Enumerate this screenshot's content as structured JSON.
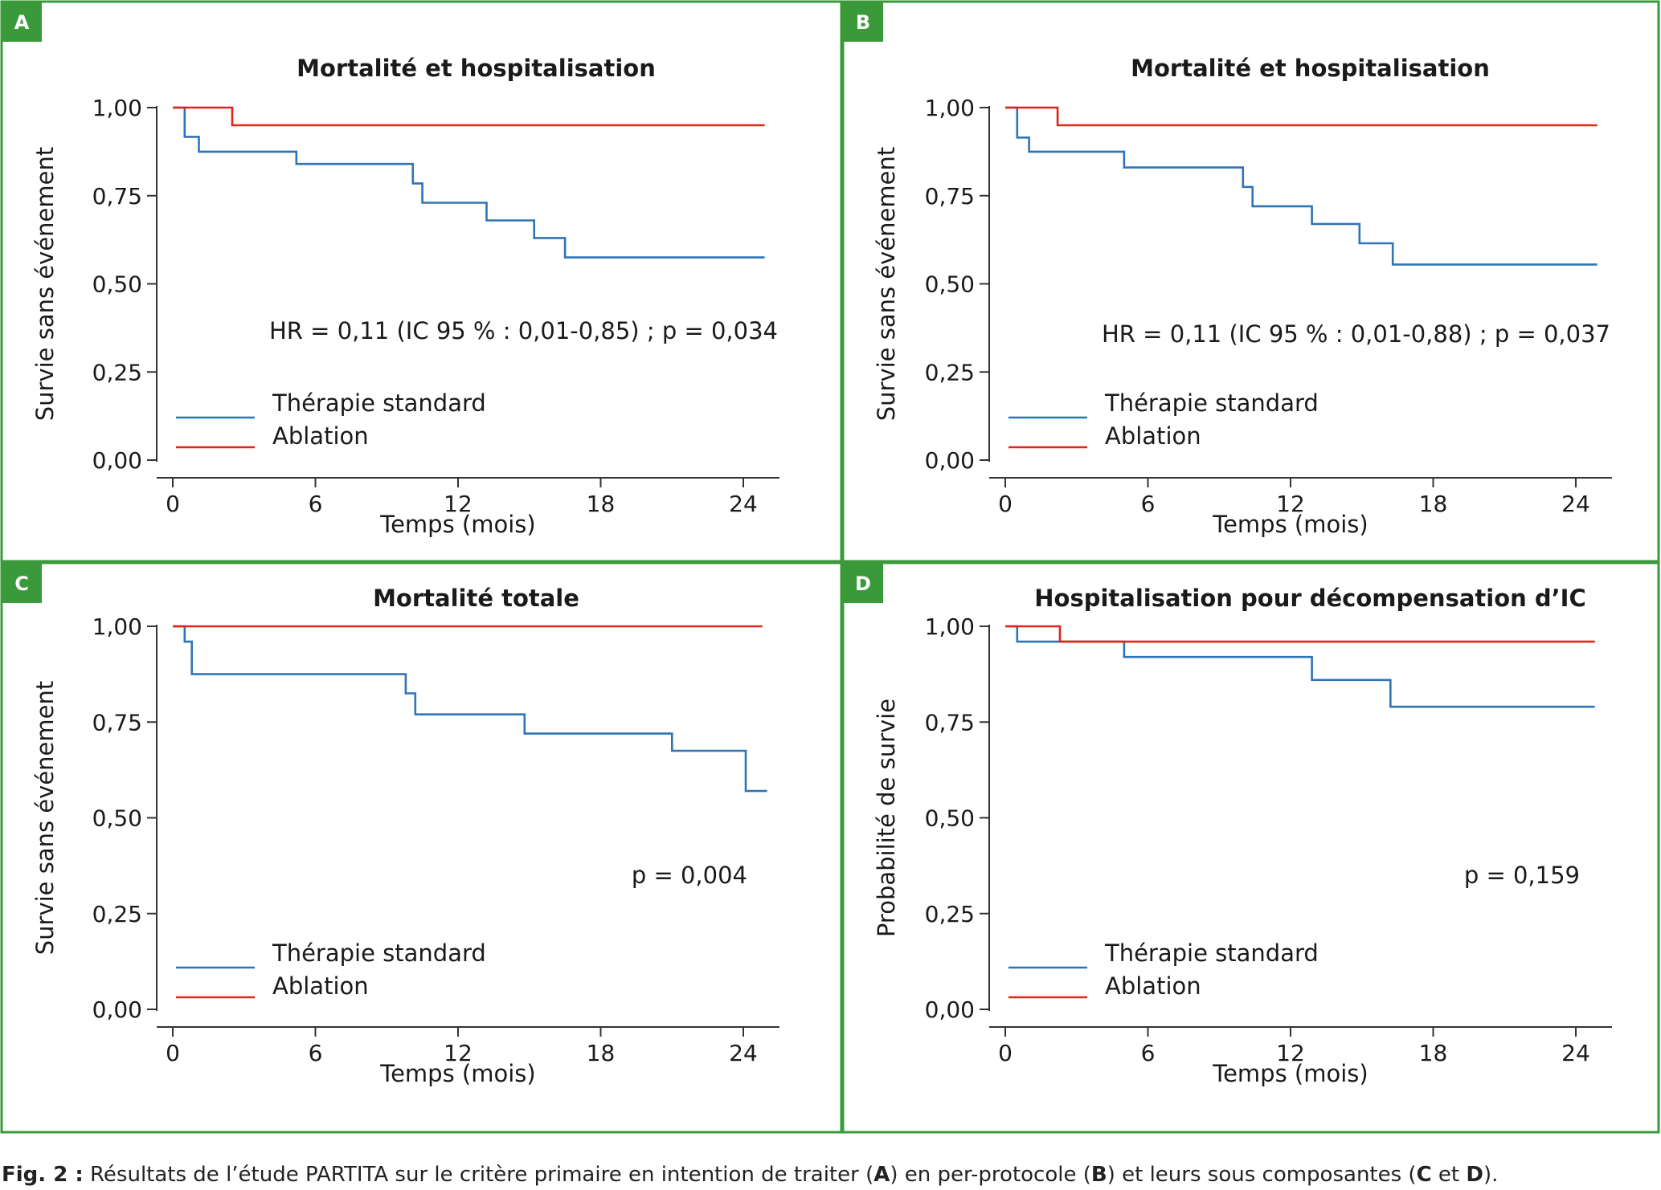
{
  "colors": {
    "frame": "#3a9a3a",
    "standard": "#2f74b5",
    "ablation": "#e2231a",
    "axis": "#333333"
  },
  "legend": {
    "standard": "Thérapie standard",
    "ablation": "Ablation"
  },
  "caption": {
    "label": "Fig. 2 :",
    "t1": " Résultats de l’étude PARTITA sur le critère primaire en intention de traiter (",
    "A": "A",
    "t2": ") en per-protocole (",
    "B": "B",
    "t3": ") et leurs sous composantes (",
    "C": "C",
    "t4": " et ",
    "D": "D",
    "t5": ")."
  },
  "chart_data": [
    {
      "panel": "A",
      "type": "line",
      "title": "Mortalité et hospitalisation",
      "xlabel": "Temps (mois)",
      "ylabel": "Survie sans événement",
      "xlim": [
        0,
        25.5
      ],
      "ylim": [
        0,
        1
      ],
      "xticks": [
        0,
        6,
        12,
        18,
        24
      ],
      "yticks": [
        "0,00",
        "0,25",
        "0,50",
        "0,75",
        "1,00"
      ],
      "annotation": "HR = 0,11 (IC 95 % : 0,01-0,85) ; p = 0,034",
      "series": [
        {
          "name": "Thérapie standard",
          "color": "standard",
          "step": true,
          "x": [
            0,
            0.5,
            0.5,
            1.1,
            1.1,
            5.2,
            5.2,
            10.1,
            10.1,
            10.5,
            10.5,
            13.2,
            13.2,
            15.2,
            15.2,
            16.5,
            16.5,
            24.9
          ],
          "y": [
            1.0,
            1.0,
            0.917,
            0.917,
            0.875,
            0.875,
            0.84,
            0.84,
            0.785,
            0.785,
            0.73,
            0.73,
            0.68,
            0.68,
            0.63,
            0.63,
            0.575,
            0.575
          ]
        },
        {
          "name": "Ablation",
          "color": "ablation",
          "step": true,
          "x": [
            0,
            2.5,
            2.5,
            24.9
          ],
          "y": [
            1.0,
            1.0,
            0.95,
            0.95
          ]
        }
      ]
    },
    {
      "panel": "B",
      "type": "line",
      "title": "Mortalité et hospitalisation",
      "xlabel": "Temps (mois)",
      "ylabel": "Survie sans événement",
      "xlim": [
        0,
        25.5
      ],
      "ylim": [
        0,
        1
      ],
      "xticks": [
        0,
        6,
        12,
        18,
        24
      ],
      "yticks": [
        "0,00",
        "0,25",
        "0,50",
        "0,75",
        "1,00"
      ],
      "annotation": "HR = 0,11 (IC 95 % : 0,01-0,88) ; p = 0,037",
      "series": [
        {
          "name": "Thérapie standard",
          "color": "standard",
          "step": true,
          "x": [
            0,
            0.5,
            0.5,
            1.0,
            1.0,
            5.0,
            5.0,
            10.0,
            10.0,
            10.4,
            10.4,
            12.9,
            12.9,
            14.9,
            14.9,
            16.3,
            16.3,
            24.9
          ],
          "y": [
            1.0,
            1.0,
            0.915,
            0.915,
            0.875,
            0.875,
            0.83,
            0.83,
            0.775,
            0.775,
            0.72,
            0.72,
            0.67,
            0.67,
            0.615,
            0.615,
            0.555,
            0.555
          ]
        },
        {
          "name": "Ablation",
          "color": "ablation",
          "step": true,
          "x": [
            0,
            2.2,
            2.2,
            24.9
          ],
          "y": [
            1.0,
            1.0,
            0.95,
            0.95
          ]
        }
      ]
    },
    {
      "panel": "C",
      "type": "line",
      "title": "Mortalité totale",
      "xlabel": "Temps (mois)",
      "ylabel": "Survie sans événement",
      "xlim": [
        0,
        25.5
      ],
      "ylim": [
        0,
        1
      ],
      "xticks": [
        0,
        6,
        12,
        18,
        24
      ],
      "yticks": [
        "0,00",
        "0,25",
        "0,50",
        "0,75",
        "1,00"
      ],
      "annotation": "p = 0,004",
      "series": [
        {
          "name": "Thérapie standard",
          "color": "standard",
          "step": true,
          "x": [
            0,
            0.5,
            0.5,
            0.8,
            0.8,
            9.8,
            9.8,
            10.2,
            10.2,
            14.8,
            14.8,
            21.0,
            21.0,
            24.1,
            24.1,
            25.0
          ],
          "y": [
            1.0,
            1.0,
            0.96,
            0.96,
            0.875,
            0.875,
            0.825,
            0.825,
            0.77,
            0.77,
            0.72,
            0.72,
            0.675,
            0.675,
            0.57,
            0.57
          ]
        },
        {
          "name": "Ablation",
          "color": "ablation",
          "step": false,
          "x": [
            0,
            24.8
          ],
          "y": [
            1.0,
            1.0
          ]
        }
      ]
    },
    {
      "panel": "D",
      "type": "line",
      "title": "Hospitalisation pour décompensation d’IC",
      "xlabel": "Temps (mois)",
      "ylabel": "Probabilité de survie",
      "xlim": [
        0,
        25.5
      ],
      "ylim": [
        0,
        1
      ],
      "xticks": [
        0,
        6,
        12,
        18,
        24
      ],
      "yticks": [
        "0,00",
        "0,25",
        "0,50",
        "0,75",
        "1,00"
      ],
      "annotation": "p = 0,159",
      "series": [
        {
          "name": "Thérapie standard",
          "color": "standard",
          "step": true,
          "x": [
            0,
            0.5,
            0.5,
            5.0,
            5.0,
            12.9,
            12.9,
            16.2,
            16.2,
            24.8
          ],
          "y": [
            1.0,
            1.0,
            0.96,
            0.96,
            0.92,
            0.92,
            0.86,
            0.86,
            0.79,
            0.79
          ]
        },
        {
          "name": "Ablation",
          "color": "ablation",
          "step": true,
          "x": [
            0,
            2.3,
            2.3,
            24.8
          ],
          "y": [
            1.0,
            1.0,
            0.96,
            0.96
          ]
        }
      ]
    }
  ]
}
